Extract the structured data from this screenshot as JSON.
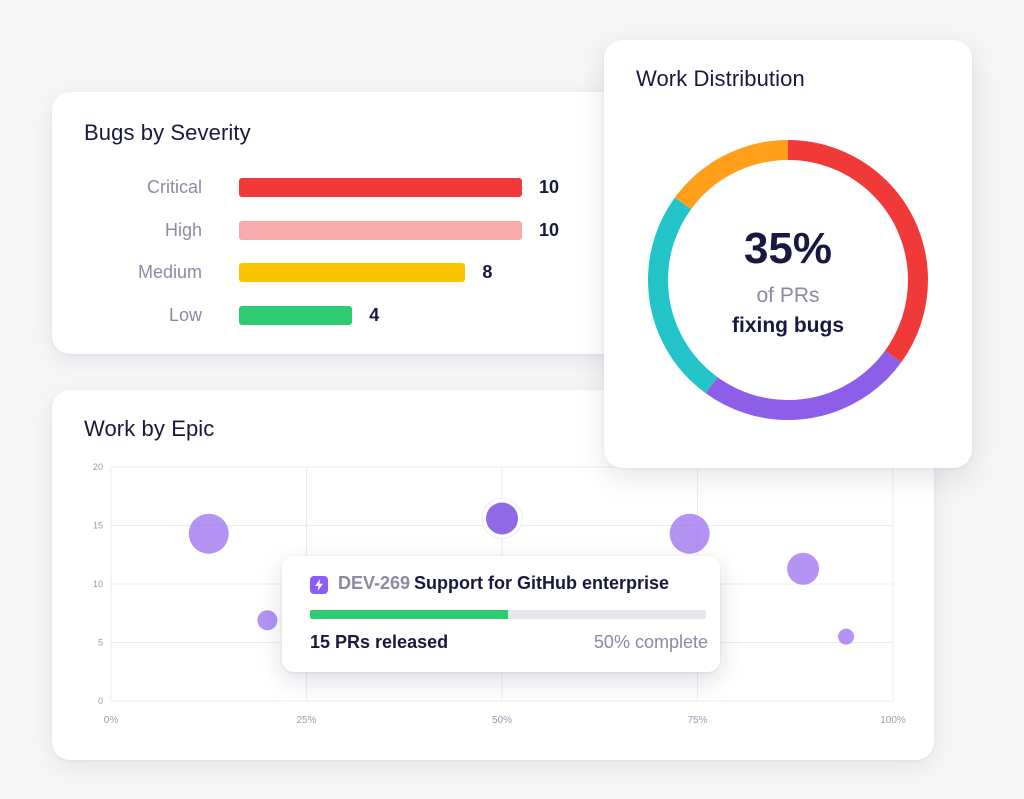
{
  "colors": {
    "critical": "#f03a3a",
    "high": "#f6aaaa",
    "medium": "#fbc400",
    "low": "#2ecc71",
    "bubble": "#9b6ff0",
    "bubble_selected": "#7c4fe0",
    "progress": "#2ecc71"
  },
  "severity": {
    "title": "Bugs by Severity"
  },
  "epic": {
    "title": "Work by Epic"
  },
  "distribution": {
    "title": "Work Distribution",
    "center_percent": "35%",
    "center_line1": "of PRs",
    "center_line2": "fixing bugs"
  },
  "tooltip": {
    "id": "DEV-269",
    "name": "Support for GitHub enterprise",
    "progress": 0.5,
    "prs": "15 PRs released",
    "complete": "50% complete",
    "icon": "lightning-icon"
  },
  "chart_data": [
    {
      "type": "bar",
      "orientation": "horizontal",
      "title": "Bugs by Severity",
      "categories": [
        "Critical",
        "High",
        "Medium",
        "Low"
      ],
      "values": [
        10,
        10,
        8,
        4
      ],
      "colors": [
        "#f03a3a",
        "#f6aaaa",
        "#fbc400",
        "#2ecc71"
      ]
    },
    {
      "type": "pie",
      "donut": true,
      "title": "Work Distribution",
      "values": [
        35,
        25,
        25,
        15
      ],
      "colors": [
        "#f03a3a",
        "#8f5ee8",
        "#22c4c8",
        "#ff9f1a"
      ]
    },
    {
      "type": "scatter",
      "title": "Work by Epic",
      "x_ticks": [
        "0%",
        "25%",
        "50%",
        "75%",
        "100%"
      ],
      "y_ticks": [
        "0",
        "5",
        "10",
        "15",
        "20"
      ],
      "xlim": [
        0,
        100
      ],
      "ylim": [
        0,
        20
      ],
      "grid": true,
      "points": [
        {
          "x": 12.5,
          "y": 14.3,
          "size": 20
        },
        {
          "x": 20,
          "y": 6.9,
          "size": 10
        },
        {
          "x": 50,
          "y": 15.6,
          "size": 16,
          "selected": true
        },
        {
          "x": 74,
          "y": 14.3,
          "size": 20
        },
        {
          "x": 88.5,
          "y": 11.3,
          "size": 16
        },
        {
          "x": 94,
          "y": 5.5,
          "size": 8
        }
      ]
    }
  ]
}
